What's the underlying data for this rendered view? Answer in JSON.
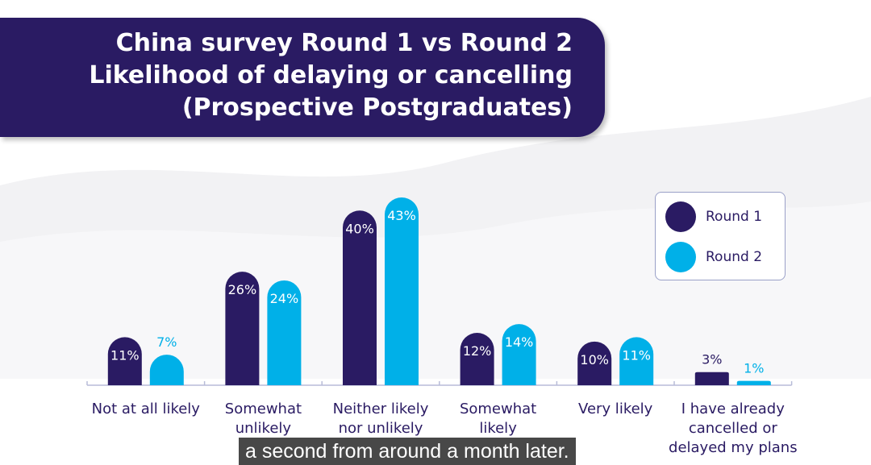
{
  "title": {
    "line1": "China survey Round 1 vs Round 2",
    "line2": "Likelihood of delaying or cancelling",
    "line3": "(Prospective Postgraduates)"
  },
  "legend": {
    "round1": "Round 1",
    "round2": "Round 2"
  },
  "caption": "a second from around a month later.",
  "colors": {
    "banner": "#2a1b63",
    "round1": "#2a1b63",
    "round2": "#00b0e8",
    "axis_text": "#2a1b63"
  },
  "chart_data": {
    "type": "bar",
    "categories": [
      [
        "Not at all likely"
      ],
      [
        "Somewhat",
        "unlikely"
      ],
      [
        "Neither likely",
        "nor unlikely"
      ],
      [
        "Somewhat",
        "likely"
      ],
      [
        "Very likely"
      ],
      [
        "I have already",
        "cancelled or",
        "delayed my plans"
      ]
    ],
    "series": [
      {
        "name": "Round 1",
        "values": [
          11,
          26,
          40,
          12,
          10,
          3
        ],
        "labels": [
          "11%",
          "26%",
          "40%",
          "12%",
          "10%",
          "3%"
        ]
      },
      {
        "name": "Round 2",
        "values": [
          7,
          24,
          43,
          14,
          11,
          1
        ],
        "labels": [
          "7%",
          "24%",
          "43%",
          "14%",
          "11%",
          "1%"
        ]
      }
    ],
    "ylim": [
      0,
      43
    ],
    "legend_position": "top-right",
    "grid": false
  }
}
